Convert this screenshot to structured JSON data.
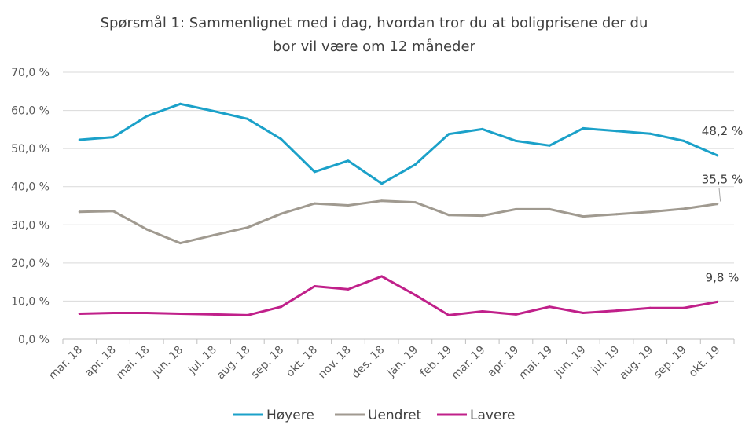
{
  "chart_data": {
    "type": "line",
    "title_lines": [
      "Spørsmål 1: Sammenlignet  med i dag, hvordan tror du at boligprisene  der du",
      "bor vil være om 12 måneder"
    ],
    "categories": [
      "mar. 18",
      "apr. 18",
      "mai. 18",
      "jun. 18",
      "jul. 18",
      "aug. 18",
      "sep. 18",
      "okt. 18",
      "nov. 18",
      "des. 18",
      "jan. 19",
      "feb. 19",
      "mar. 19",
      "apr. 19",
      "mai. 19",
      "jun. 19",
      "jul. 19",
      "aug. 19",
      "sep. 19",
      "okt. 19"
    ],
    "y_ticks": [
      "0,0 %",
      "10,0 %",
      "20,0 %",
      "30,0 %",
      "40,0 %",
      "50,0 %",
      "60,0 %",
      "70,0 %"
    ],
    "ylim": [
      0,
      70
    ],
    "grid": true,
    "legend_position": "bottom",
    "series": [
      {
        "name": "Høyere",
        "color": "#1ba1c9",
        "end_label": "48,2 %",
        "values": [
          52.3,
          53.0,
          58.5,
          61.7,
          59.8,
          57.8,
          52.5,
          43.9,
          46.8,
          40.8,
          45.8,
          53.8,
          55.1,
          52.0,
          50.8,
          55.3,
          54.6,
          53.9,
          52.0,
          48.2
        ]
      },
      {
        "name": "Uendret",
        "color": "#a09a90",
        "end_label": "35,5 %",
        "values": [
          33.4,
          33.6,
          28.8,
          25.2,
          27.3,
          29.3,
          32.9,
          35.6,
          35.1,
          36.3,
          35.9,
          32.6,
          32.4,
          34.1,
          34.1,
          32.2,
          32.8,
          33.4,
          34.2,
          35.5
        ]
      },
      {
        "name": "Lavere",
        "color": "#c0208a",
        "end_label": "9,8 %",
        "values": [
          6.7,
          6.9,
          6.9,
          6.7,
          6.5,
          6.3,
          8.5,
          13.9,
          13.1,
          16.5,
          11.6,
          6.3,
          7.3,
          6.5,
          8.5,
          6.9,
          7.5,
          8.2,
          8.2,
          9.8
        ]
      }
    ]
  }
}
